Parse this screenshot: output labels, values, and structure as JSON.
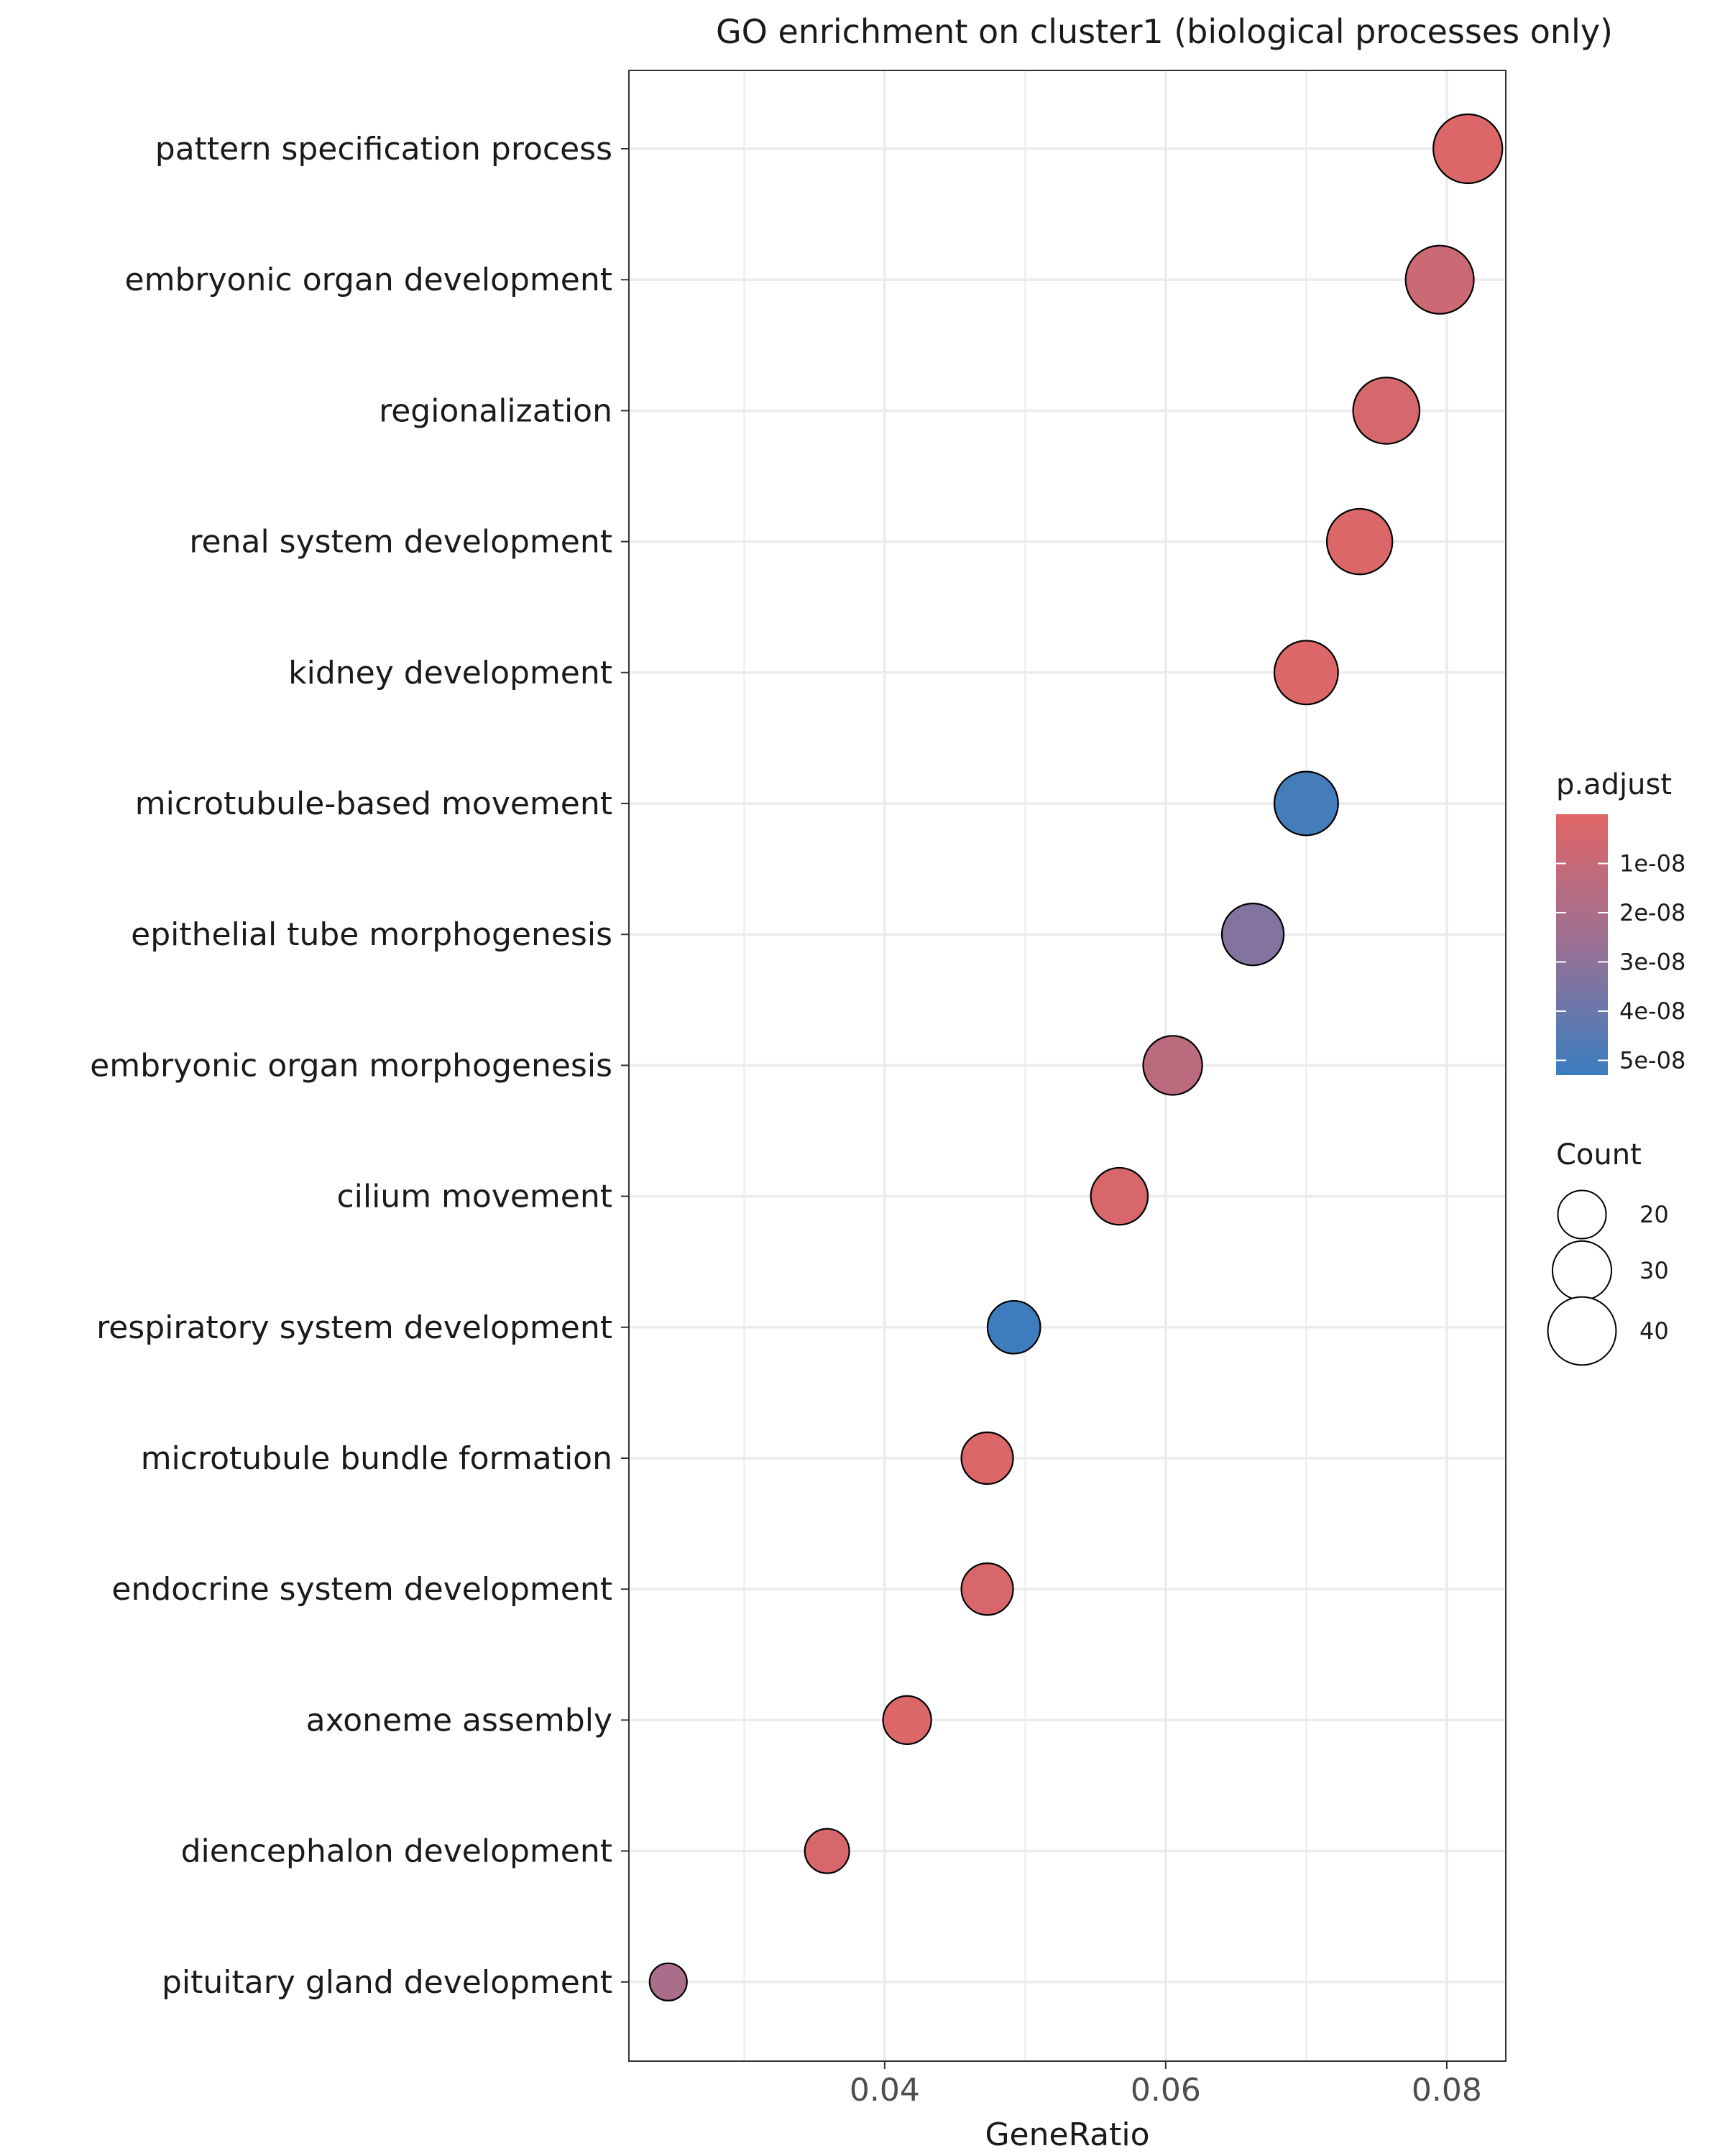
{
  "chart_data": {
    "type": "scatter",
    "title": "GO enrichment on cluster1 (biological processes only)",
    "xlabel": "GeneRatio",
    "ylabel": "",
    "xlim": [
      0.0218,
      0.0842
    ],
    "x_ticks": [
      {
        "value": 0.04,
        "label": "0.04"
      },
      {
        "value": 0.06,
        "label": "0.06"
      },
      {
        "value": 0.08,
        "label": "0.08"
      }
    ],
    "x_minor_ticks": [
      0.03,
      0.05,
      0.07
    ],
    "grid": true,
    "categories": [
      "pattern specification process",
      "embryonic organ development",
      "regionalization",
      "renal system development",
      "kidney development",
      "microtubule-based movement",
      "epithelial tube morphogenesis",
      "embryonic organ morphogenesis",
      "cilium movement",
      "respiratory system development",
      "microtubule bundle formation",
      "endocrine system development",
      "axoneme assembly",
      "diencephalon development",
      "pituitary gland development"
    ],
    "points": [
      {
        "term": "pattern specification process",
        "gene_ratio": 0.0815,
        "count": 41,
        "p_adjust": 2e-09
      },
      {
        "term": "embryonic organ development",
        "gene_ratio": 0.0795,
        "count": 40,
        "p_adjust": 8e-09
      },
      {
        "term": "regionalization",
        "gene_ratio": 0.0757,
        "count": 38,
        "p_adjust": 4e-09
      },
      {
        "term": "renal system development",
        "gene_ratio": 0.0738,
        "count": 37,
        "p_adjust": 2e-09
      },
      {
        "term": "kidney development",
        "gene_ratio": 0.07,
        "count": 35,
        "p_adjust": 2e-09
      },
      {
        "term": "microtubule-based movement",
        "gene_ratio": 0.07,
        "count": 35,
        "p_adjust": 5e-08
      },
      {
        "term": "epithelial tube morphogenesis",
        "gene_ratio": 0.0662,
        "count": 33,
        "p_adjust": 3.3e-08
      },
      {
        "term": "embryonic organ morphogenesis",
        "gene_ratio": 0.0605,
        "count": 30,
        "p_adjust": 1.4e-08
      },
      {
        "term": "cilium movement",
        "gene_ratio": 0.0567,
        "count": 28,
        "p_adjust": 3e-09
      },
      {
        "term": "respiratory system development",
        "gene_ratio": 0.0492,
        "count": 24,
        "p_adjust": 5.2e-08
      },
      {
        "term": "microtubule bundle formation",
        "gene_ratio": 0.0473,
        "count": 23,
        "p_adjust": 2e-09
      },
      {
        "term": "endocrine system development",
        "gene_ratio": 0.0473,
        "count": 23,
        "p_adjust": 3e-09
      },
      {
        "term": "axoneme assembly",
        "gene_ratio": 0.0416,
        "count": 20,
        "p_adjust": 2e-09
      },
      {
        "term": "diencephalon development",
        "gene_ratio": 0.0359,
        "count": 17,
        "p_adjust": 3e-09
      },
      {
        "term": "pituitary gland development",
        "gene_ratio": 0.0246,
        "count": 12,
        "p_adjust": 2.1e-08
      }
    ],
    "color_legend": {
      "title": "p.adjust",
      "range": [
        0.0,
        5.3e-08
      ],
      "low_color": "#E06666",
      "high_color": "#3A7DBF",
      "ticks": [
        {
          "value": 1e-08,
          "label": "1e-08"
        },
        {
          "value": 2e-08,
          "label": "2e-08"
        },
        {
          "value": 3e-08,
          "label": "3e-08"
        },
        {
          "value": 4e-08,
          "label": "4e-08"
        },
        {
          "value": 5e-08,
          "label": "5e-08"
        }
      ]
    },
    "size_legend": {
      "title": "Count",
      "entries": [
        {
          "value": 20,
          "label": "20"
        },
        {
          "value": 30,
          "label": "30"
        },
        {
          "value": 40,
          "label": "40"
        }
      ]
    },
    "legend_position": "right"
  }
}
